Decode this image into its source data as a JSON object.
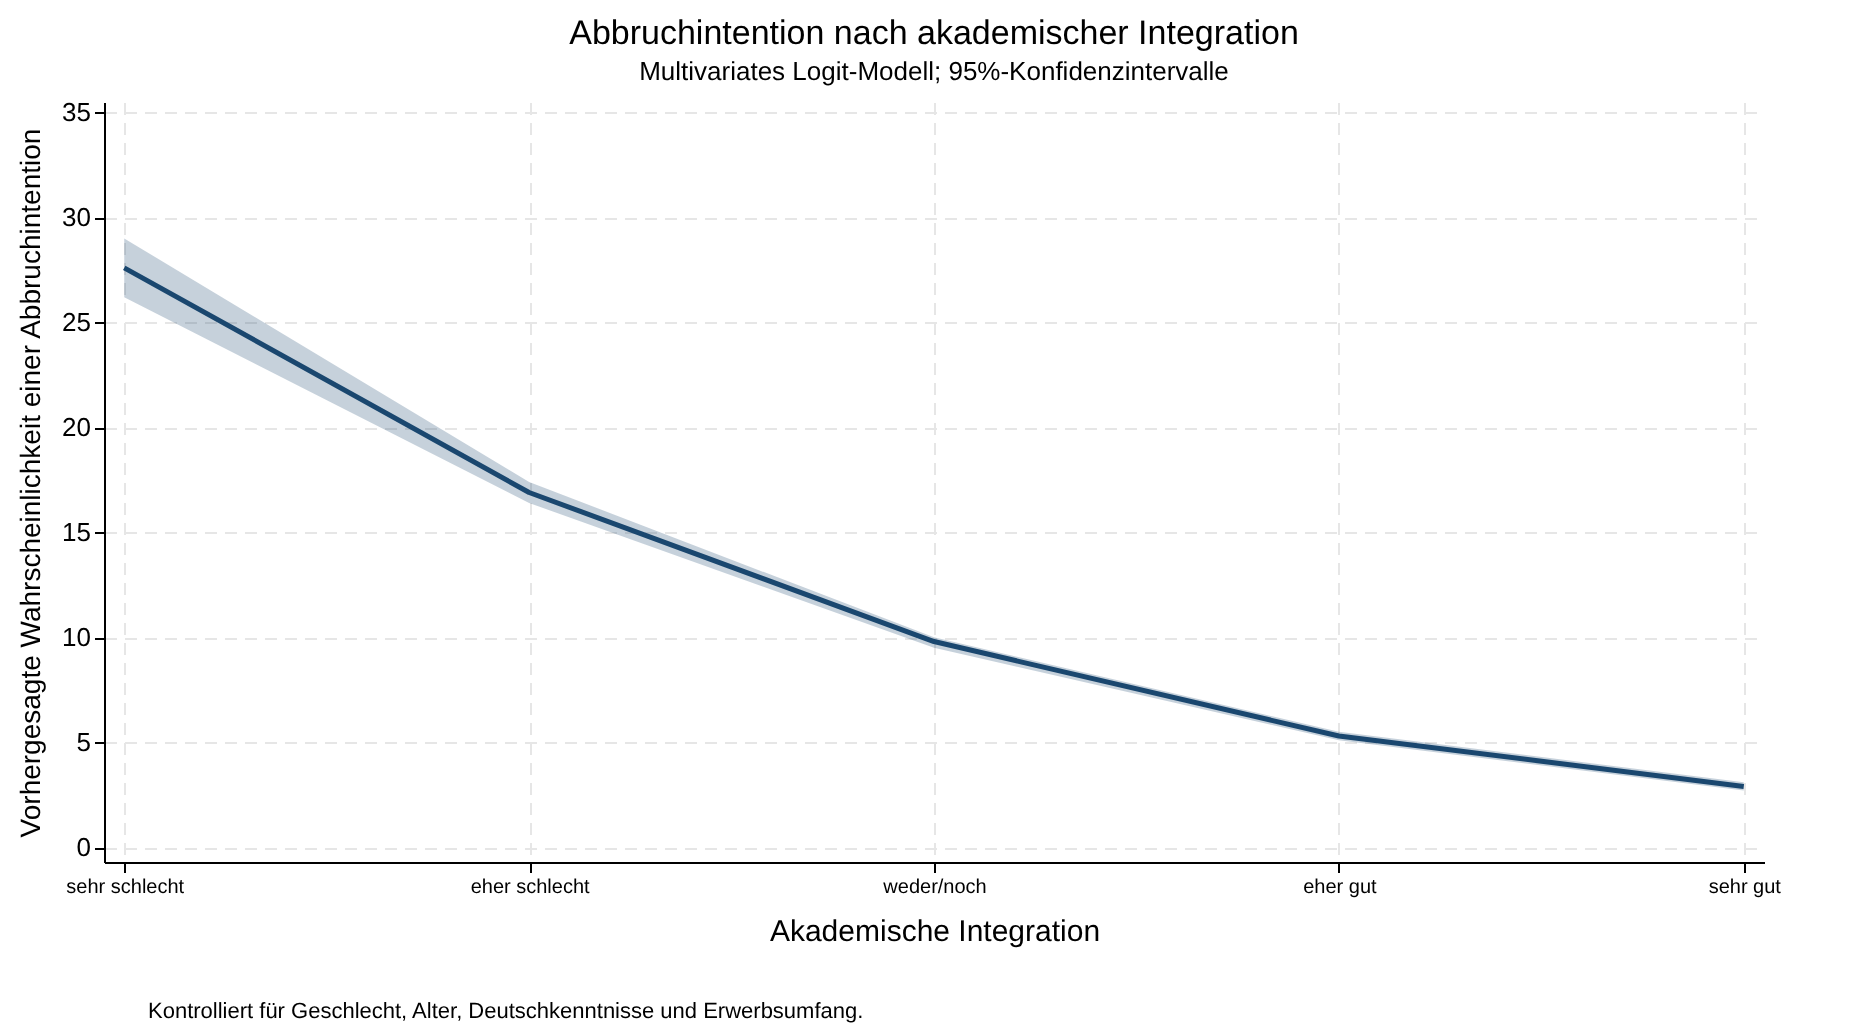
{
  "chart_data": {
    "type": "line",
    "title": "Abbruchintention nach akademischer Integration",
    "subtitle": "Multivariates Logit-Modell; 95%-Konfidenzintervalle",
    "xlabel": "Akademische Integration",
    "ylabel": "Vorhergesagte Wahrscheinlichkeit einer Abbruchintention",
    "annotations": [
      "Kontrolliert für Geschlecht, Alter, Deutschkenntnisse und Erwerbsumfang."
    ],
    "categories": [
      "sehr schlecht",
      "eher schlecht",
      "weder/noch",
      "eher gut",
      "sehr gut"
    ],
    "series": [
      {
        "color": "#1a476f",
        "values": [
          27.6,
          16.9,
          9.8,
          5.3,
          2.9
        ],
        "lower": [
          26.2,
          16.4,
          9.5,
          5.1,
          2.7
        ],
        "upper": [
          29.0,
          17.4,
          10.0,
          5.5,
          3.1
        ]
      }
    ],
    "ylim": [
      -0.7,
      35.5
    ],
    "yticks": [
      0,
      5,
      10,
      15,
      20,
      25,
      30,
      35
    ],
    "grid": true,
    "legend": false,
    "marker": "none",
    "line_style": "solid"
  }
}
